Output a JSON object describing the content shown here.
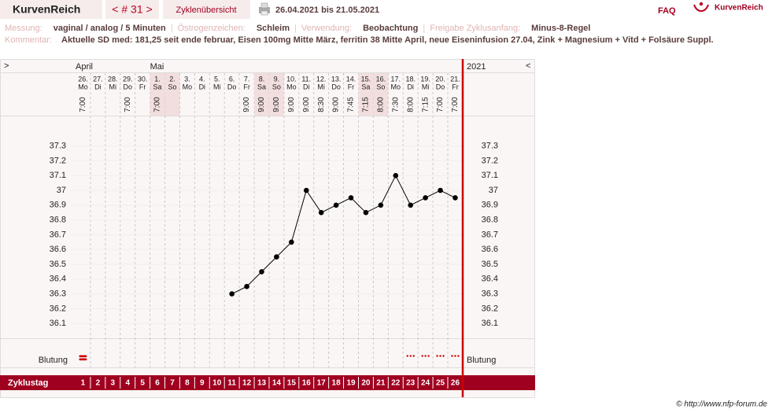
{
  "header": {
    "app_name": "KurvenReich",
    "cycle_nav": "< # 31 >",
    "overview": "Zyklenübersicht",
    "date_range": "26.04.2021 bis 21.05.2021",
    "faq": "FAQ",
    "logo": "KurvenReich"
  },
  "info": {
    "separator": "|",
    "items": [
      {
        "label": "Messung:",
        "value": "vaginal / analog / 5 Minuten"
      },
      {
        "label": "Östrogenzeichen:",
        "value": "Schleim"
      },
      {
        "label": "Verwendung:",
        "value": "Beobachtung"
      },
      {
        "label": "Freigabe Zyklusanfang:",
        "value": "Minus-8-Regel"
      }
    ],
    "comment_label": "Kommentar:",
    "comment": "Aktuelle SD med: 181,25 seit ende februar, Eisen 100mg Mitte März, ferritin 38 Mitte April, neue Eiseninfusion 27.04, Zink + Magnesium + Vitd + Folsäure Suppl."
  },
  "chart_data": {
    "type": "line",
    "nav_left": ">",
    "nav_right": "<",
    "year": "2021",
    "month_labels": [
      "April",
      null,
      null,
      null,
      null,
      "Mai",
      null,
      null,
      null,
      null,
      null,
      null,
      null,
      null,
      null,
      null,
      null,
      null,
      null,
      null,
      null,
      null,
      null,
      null,
      null,
      null
    ],
    "x": [
      1,
      2,
      3,
      4,
      5,
      6,
      7,
      8,
      9,
      10,
      11,
      12,
      13,
      14,
      15,
      16,
      17,
      18,
      19,
      20,
      21,
      22,
      23,
      24,
      25,
      26
    ],
    "dates": [
      "26.",
      "27.",
      "28.",
      "29.",
      "30.",
      "1.",
      "2.",
      "3.",
      "4.",
      "5.",
      "6.",
      "7.",
      "8.",
      "9.",
      "10.",
      "11.",
      "12.",
      "13.",
      "14.",
      "15.",
      "16.",
      "17.",
      "18.",
      "19.",
      "20.",
      "21."
    ],
    "weekdays": [
      "Mo",
      "Di",
      "Mi",
      "Do",
      "Fr",
      "Sa",
      "So",
      "Mo",
      "Di",
      "Mi",
      "Do",
      "Fr",
      "Sa",
      "So",
      "Mo",
      "Di",
      "Mi",
      "Do",
      "Fr",
      "Sa",
      "So",
      "Mo",
      "Di",
      "Mi",
      "Do",
      "Fr"
    ],
    "shaded": [
      false,
      false,
      false,
      false,
      false,
      true,
      true,
      false,
      false,
      false,
      false,
      false,
      true,
      true,
      false,
      false,
      false,
      false,
      false,
      true,
      true,
      false,
      false,
      false,
      false,
      false
    ],
    "times": [
      "7:00",
      null,
      null,
      "7:00",
      null,
      "7:00",
      null,
      null,
      null,
      null,
      null,
      "9:00",
      "9:00",
      "9:00",
      "9:00",
      "9:00",
      "8:30",
      "9:00",
      "7:45",
      "7:15",
      "8:00",
      "7:30",
      "8:00",
      "7:15",
      "7:00",
      "7:00"
    ],
    "values": [
      null,
      null,
      null,
      null,
      null,
      null,
      null,
      null,
      null,
      null,
      36.3,
      36.35,
      36.45,
      36.55,
      36.65,
      37.0,
      36.85,
      36.9,
      36.95,
      36.85,
      36.9,
      37.1,
      36.9,
      36.95,
      37.0,
      36.95
    ],
    "color": "#000000",
    "xlim": [
      0.5,
      26.5
    ],
    "ylim": [
      36.0,
      37.5
    ],
    "yticks": [
      36.1,
      36.2,
      36.3,
      36.4,
      36.5,
      36.6,
      36.7,
      36.8,
      36.9,
      37,
      37.1,
      37.2,
      37.3
    ],
    "grid": true,
    "bleeding_label": "Blutung",
    "heavy_bleeding_days": [
      1
    ],
    "spotting_days": [
      23,
      24,
      25,
      26
    ],
    "bleeding_color": "#cc0000",
    "cycle_day_label": "Zyklustag"
  },
  "footer": "© http://www.nfp-forum.de"
}
